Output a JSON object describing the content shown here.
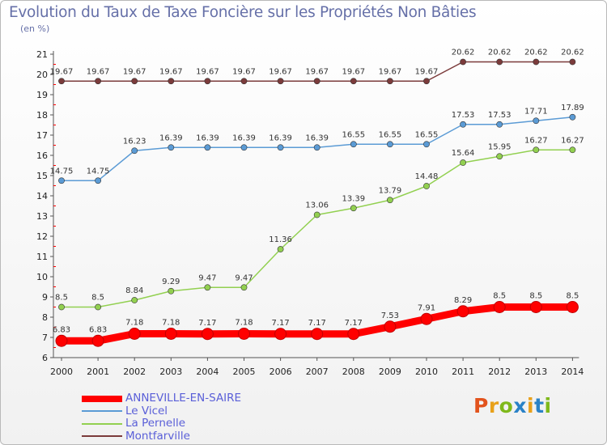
{
  "header": {
    "title": "Evolution du Taux de Taxe Foncière sur les Propriétés Non Bâties",
    "unit": "(en %)"
  },
  "logo": {
    "text": "Proxiti",
    "colors": [
      "#e2531d",
      "#e8a11a",
      "#7fb91b",
      "#2a82c7",
      "#e8a11a",
      "#2a82c7",
      "#7fb91b"
    ]
  },
  "chart_data": {
    "type": "line",
    "x": [
      "2000",
      "2001",
      "2002",
      "2003",
      "2004",
      "2005",
      "2006",
      "2007",
      "2008",
      "2009",
      "2010",
      "2011",
      "2012",
      "2013",
      "2014"
    ],
    "ylim": [
      6,
      21
    ],
    "yticks": [
      6,
      7,
      8,
      9,
      10,
      11,
      12,
      13,
      14,
      15,
      16,
      17,
      18,
      19,
      20,
      21
    ],
    "grid": false,
    "legend_position": "bottom-left",
    "series": [
      {
        "name": "ANNEVILLE-EN-SAIRE",
        "color": "#ff0000",
        "values": [
          6.83,
          6.83,
          7.18,
          7.18,
          7.17,
          7.18,
          7.17,
          7.17,
          7.17,
          7.53,
          7.91,
          8.29,
          8.5,
          8.5,
          8.5
        ],
        "labels": [
          "6.83",
          "6.83",
          "7.18",
          "7.18",
          "7.17",
          "7.18",
          "7.17",
          "7.17",
          "7.17",
          "7.53",
          "7.91",
          "8.29",
          "8.5",
          "8.5",
          "8.5"
        ]
      },
      {
        "name": "Le Vicel",
        "color": "#5b9bd5",
        "values": [
          14.75,
          14.75,
          16.23,
          16.39,
          16.39,
          16.39,
          16.39,
          16.39,
          16.55,
          16.55,
          16.55,
          17.53,
          17.53,
          17.71,
          17.89
        ],
        "labels": [
          "14.75",
          "14.75",
          "16.23",
          "16.39",
          "16.39",
          "16.39",
          "16.39",
          "16.39",
          "16.55",
          "16.55",
          "16.55",
          "17.53",
          "17.53",
          "17.71",
          "17.89"
        ]
      },
      {
        "name": "La Pernelle",
        "color": "#92d050",
        "values": [
          8.5,
          8.5,
          8.84,
          9.29,
          9.47,
          9.47,
          11.36,
          13.06,
          13.39,
          13.79,
          14.48,
          15.64,
          15.95,
          16.27,
          16.27
        ],
        "labels": [
          "8.5",
          "8.5",
          "8.84",
          "9.29",
          "9.47",
          "9.47",
          "11.36",
          "13.06",
          "13.39",
          "13.79",
          "14.48",
          "15.64",
          "15.95",
          "16.27",
          "16.27"
        ]
      },
      {
        "name": "Montfarville",
        "color": "#7b3b3b",
        "values": [
          19.67,
          19.67,
          19.67,
          19.67,
          19.67,
          19.67,
          19.67,
          19.67,
          19.67,
          19.67,
          19.67,
          20.62,
          20.62,
          20.62,
          20.62
        ],
        "labels": [
          "19.67",
          "19.67",
          "19.67",
          "19.67",
          "19.67",
          "19.67",
          "19.67",
          "19.67",
          "19.67",
          "19.67",
          "19.67",
          "20.62",
          "20.62",
          "20.62",
          "20.62"
        ]
      }
    ]
  }
}
